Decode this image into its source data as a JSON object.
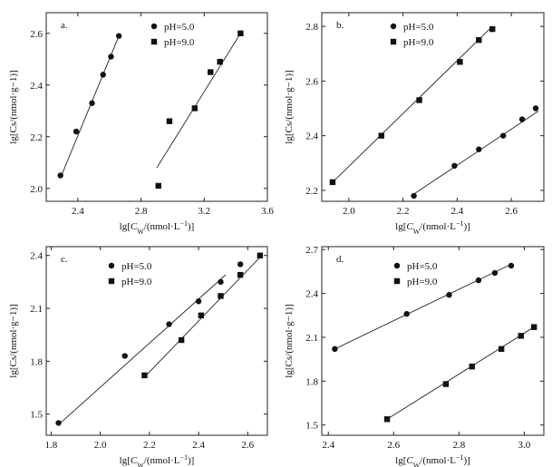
{
  "chart_data": [
    {
      "panel_label": "a.",
      "type": "scatter",
      "xlabel_prefix": "lg[",
      "xlabel_var": "C",
      "xlabel_sub": "W",
      "xlabel_suffix": "/(nmol·L",
      "xlabel_exp": "−1",
      "xlabel_close": ")]",
      "ylabel": "lg[Cs/(nmol·g−1)]",
      "xlim": [
        2.2,
        3.6
      ],
      "ylim": [
        1.95,
        2.68
      ],
      "xticks": [
        "2.4",
        "2.8",
        "3.2",
        "3.6"
      ],
      "xtick_values": [
        2.4,
        2.8,
        3.2,
        3.6
      ],
      "yticks": [
        "2.0",
        "2.2",
        "2.4",
        "2.6"
      ],
      "ytick_values": [
        2.0,
        2.2,
        2.4,
        2.6
      ],
      "series": [
        {
          "name": "pH=5.0",
          "marker": "circle",
          "x": [
            2.29,
            2.39,
            2.49,
            2.56,
            2.61,
            2.66
          ],
          "y": [
            2.05,
            2.22,
            2.33,
            2.44,
            2.51,
            2.59
          ],
          "fit": [
            [
              2.29,
              2.04
            ],
            [
              2.66,
              2.59
            ]
          ]
        },
        {
          "name": "pH=9.0",
          "marker": "square",
          "x": [
            2.91,
            2.98,
            3.14,
            3.24,
            3.3,
            3.43
          ],
          "y": [
            2.01,
            2.26,
            2.31,
            2.45,
            2.49,
            2.6
          ],
          "fit": [
            [
              2.9,
              2.08
            ],
            [
              3.43,
              2.6
            ]
          ]
        }
      ]
    },
    {
      "panel_label": "b.",
      "type": "scatter",
      "xlabel_prefix": "lg[",
      "xlabel_var": "C",
      "xlabel_sub": "W",
      "xlabel_suffix": "/(nmol·L",
      "xlabel_exp": "−1",
      "xlabel_close": ")]",
      "ylabel": "lg[Cs/(nmol·g−1)]",
      "xlim": [
        1.9,
        2.72
      ],
      "ylim": [
        2.16,
        2.85
      ],
      "xticks": [
        "2.0",
        "2.2",
        "2.4",
        "2.6"
      ],
      "xtick_values": [
        2.0,
        2.2,
        2.4,
        2.6
      ],
      "yticks": [
        "2.2",
        "2.4",
        "2.6",
        "2.8"
      ],
      "ytick_values": [
        2.2,
        2.4,
        2.6,
        2.8
      ],
      "series": [
        {
          "name": "pH=5.0",
          "marker": "circle",
          "x": [
            2.24,
            2.39,
            2.48,
            2.57,
            2.64,
            2.69
          ],
          "y": [
            2.18,
            2.29,
            2.35,
            2.4,
            2.46,
            2.5
          ],
          "fit": [
            [
              2.23,
              2.18
            ],
            [
              2.7,
              2.49
            ]
          ]
        },
        {
          "name": "pH=9.0",
          "marker": "square",
          "x": [
            1.94,
            2.12,
            2.26,
            2.41,
            2.48,
            2.53
          ],
          "y": [
            2.23,
            2.4,
            2.53,
            2.67,
            2.75,
            2.79
          ],
          "fit": [
            [
              1.94,
              2.23
            ],
            [
              2.53,
              2.8
            ]
          ]
        }
      ]
    },
    {
      "panel_label": "c.",
      "type": "scatter",
      "xlabel_prefix": "lg[",
      "xlabel_var": "C",
      "xlabel_sub": "W",
      "xlabel_suffix": "/(nmol·L",
      "xlabel_exp": "−1",
      "xlabel_close": ")]",
      "ylabel": "lg[Cs/(nmol·g−1)]",
      "xlim": [
        1.78,
        2.68
      ],
      "ylim": [
        1.38,
        2.45
      ],
      "xticks": [
        "1.8",
        "2.0",
        "2.2",
        "2.4",
        "2.6"
      ],
      "xtick_values": [
        1.8,
        2.0,
        2.2,
        2.4,
        2.6
      ],
      "yticks": [
        "1.5",
        "1.8",
        "2.1",
        "2.4"
      ],
      "ytick_values": [
        1.5,
        1.8,
        2.1,
        2.4
      ],
      "series": [
        {
          "name": "pH=5.0",
          "marker": "circle",
          "x": [
            1.83,
            2.1,
            2.28,
            2.4,
            2.49,
            2.57
          ],
          "y": [
            1.45,
            1.83,
            2.01,
            2.14,
            2.25,
            2.35
          ],
          "fit": [
            [
              1.83,
              1.44
            ],
            [
              2.51,
              2.29
            ]
          ]
        },
        {
          "name": "pH=9.0",
          "marker": "square",
          "x": [
            2.18,
            2.33,
            2.41,
            2.49,
            2.57,
            2.65
          ],
          "y": [
            1.72,
            1.92,
            2.06,
            2.17,
            2.29,
            2.4
          ],
          "fit": [
            [
              2.18,
              1.71
            ],
            [
              2.65,
              2.39
            ]
          ]
        }
      ]
    },
    {
      "panel_label": "d.",
      "type": "scatter",
      "xlabel_prefix": "lg[",
      "xlabel_var": "C",
      "xlabel_sub": "W",
      "xlabel_suffix": "/(nmol·L",
      "xlabel_exp": "−1",
      "xlabel_close": ")]",
      "ylabel": "lg[Cs/(nmol·g−1)]",
      "xlim": [
        2.38,
        3.06
      ],
      "ylim": [
        1.43,
        2.72
      ],
      "xticks": [
        "2.4",
        "2.6",
        "2.8",
        "3.0"
      ],
      "xtick_values": [
        2.4,
        2.6,
        2.8,
        3.0
      ],
      "yticks": [
        "1.5",
        "1.8",
        "2.1",
        "2.4",
        "2.7"
      ],
      "ytick_values": [
        1.5,
        1.8,
        2.1,
        2.4,
        2.7
      ],
      "series": [
        {
          "name": "pH=5.0",
          "marker": "circle",
          "x": [
            2.42,
            2.64,
            2.77,
            2.86,
            2.91,
            2.96
          ],
          "y": [
            2.02,
            2.26,
            2.39,
            2.49,
            2.54,
            2.59
          ],
          "fit": [
            [
              2.42,
              2.02
            ],
            [
              2.96,
              2.6
            ]
          ]
        },
        {
          "name": "pH=9.0",
          "marker": "square",
          "x": [
            2.58,
            2.76,
            2.84,
            2.93,
            2.99,
            3.03
          ],
          "y": [
            1.54,
            1.78,
            1.9,
            2.02,
            2.11,
            2.17
          ],
          "fit": [
            [
              2.58,
              1.54
            ],
            [
              3.03,
              2.17
            ]
          ]
        }
      ]
    }
  ]
}
